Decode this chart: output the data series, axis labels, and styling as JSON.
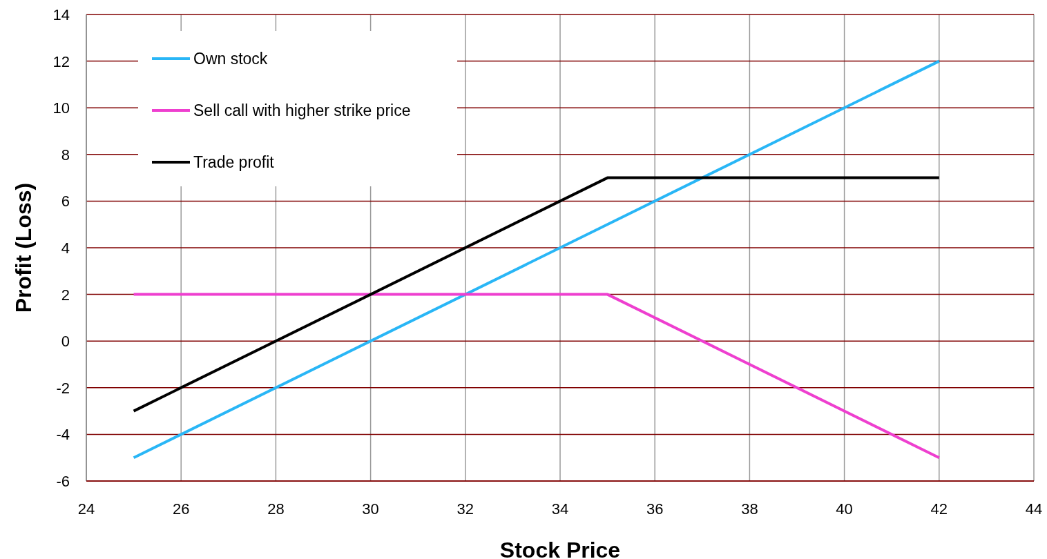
{
  "chart_data": {
    "type": "line",
    "xlabel": "Stock Price",
    "ylabel": "Profit (Loss)",
    "xlim": [
      24,
      44
    ],
    "xticks": [
      24,
      26,
      28,
      30,
      32,
      34,
      36,
      38,
      40,
      42,
      44
    ],
    "ylim": [
      -6,
      14
    ],
    "yticks": [
      -6,
      -4,
      -2,
      0,
      2,
      4,
      6,
      8,
      10,
      12,
      14
    ],
    "grid": true,
    "legend": "top left",
    "marker": "none",
    "line_style": "solid",
    "series": [
      {
        "name": "Own stock",
        "color": "#29b6f6",
        "x": [
          25,
          42
        ],
        "values": [
          -5,
          12
        ]
      },
      {
        "name": "Sell call with higher strike price",
        "color": "#ee3fcf",
        "x": [
          25,
          35,
          42
        ],
        "values": [
          2,
          2,
          -5
        ]
      },
      {
        "name": "Trade profit",
        "color": "#000000",
        "x": [
          25,
          35,
          42
        ],
        "values": [
          -3,
          7,
          7
        ]
      }
    ]
  }
}
